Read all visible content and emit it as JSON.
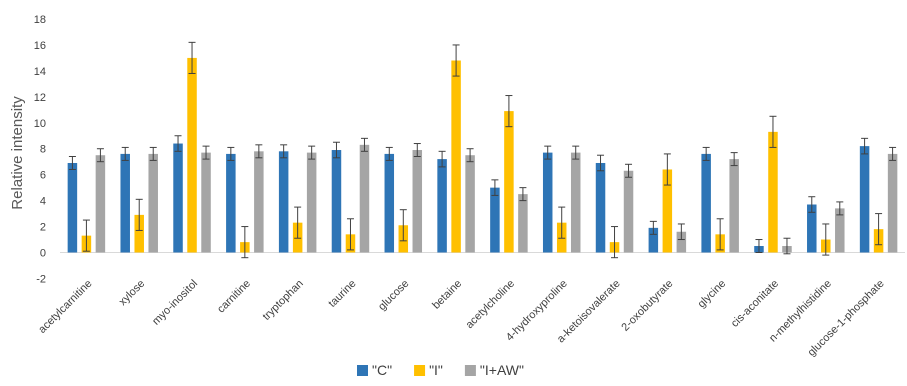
{
  "chart_data": {
    "type": "bar",
    "title": "",
    "xlabel": "",
    "ylabel": "Relative intensity",
    "ylim": [
      -2,
      18
    ],
    "yticks": [
      -2,
      0,
      2,
      4,
      6,
      8,
      10,
      12,
      14,
      16,
      18
    ],
    "grid": false,
    "legend_position": "bottom",
    "categories": [
      "acetylcarnitine",
      "xylose",
      "myo-inositol",
      "carnitine",
      "tryptophan",
      "taurine",
      "glucose",
      "betaine",
      "acetylcholine",
      "4-hydroxyproline",
      "a-ketoisovalerate",
      "2-oxobutyrate",
      "glycine",
      "cis-aconitate",
      "n-methylhistidine",
      "glucose-1-phosphate"
    ],
    "series": [
      {
        "name": "\"C\"",
        "color": "#2e75b6",
        "values": [
          6.9,
          7.6,
          8.4,
          7.6,
          7.8,
          7.9,
          7.6,
          7.2,
          5.0,
          7.7,
          6.9,
          1.9,
          7.6,
          0.5,
          3.7,
          8.2
        ],
        "errors": [
          0.5,
          0.5,
          0.6,
          0.5,
          0.5,
          0.6,
          0.5,
          0.6,
          0.6,
          0.5,
          0.6,
          0.5,
          0.5,
          0.5,
          0.6,
          0.6
        ]
      },
      {
        "name": "\"I\"",
        "color": "#ffc000",
        "values": [
          1.3,
          2.9,
          15.0,
          0.8,
          2.3,
          1.4,
          2.1,
          14.8,
          10.9,
          2.3,
          0.8,
          6.4,
          1.4,
          9.3,
          1.0,
          1.8
        ],
        "errors": [
          1.2,
          1.2,
          1.2,
          1.2,
          1.2,
          1.2,
          1.2,
          1.2,
          1.2,
          1.2,
          1.2,
          1.2,
          1.2,
          1.2,
          1.2,
          1.2
        ]
      },
      {
        "name": "\"I+AW\"",
        "color": "#a5a5a5",
        "values": [
          7.5,
          7.6,
          7.7,
          7.8,
          7.7,
          8.3,
          7.9,
          7.5,
          4.5,
          7.7,
          6.3,
          1.6,
          7.2,
          0.5,
          3.4,
          7.6
        ],
        "errors": [
          0.5,
          0.5,
          0.5,
          0.5,
          0.5,
          0.5,
          0.5,
          0.5,
          0.5,
          0.5,
          0.5,
          0.6,
          0.5,
          0.6,
          0.5,
          0.5
        ]
      }
    ]
  }
}
